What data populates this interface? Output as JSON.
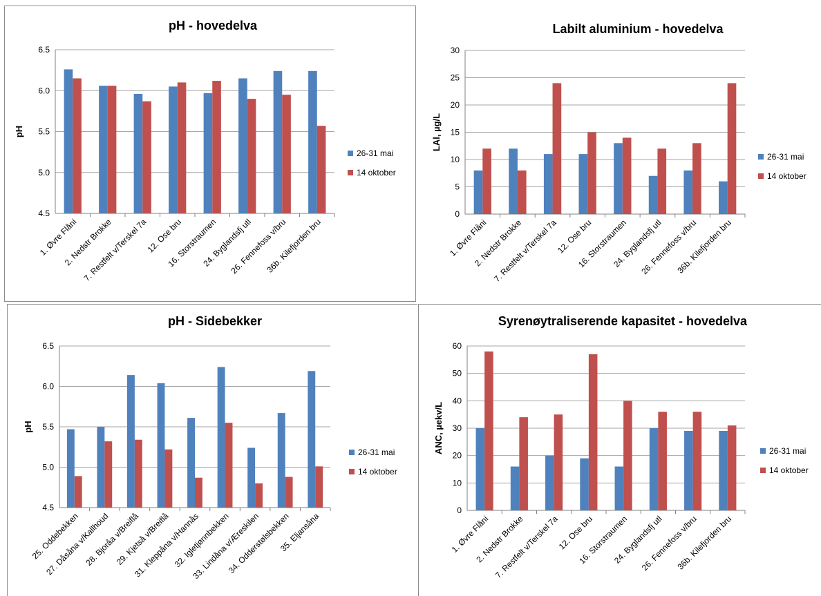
{
  "colors": {
    "series1": "#4F81BD",
    "series2": "#C0504D",
    "grid": "#A6A6A6",
    "axis": "#808080"
  },
  "chart_data": [
    {
      "type": "bar",
      "title": "pH - hovedelva",
      "ylabel": "pH",
      "ylim": [
        4.5,
        6.5
      ],
      "yticks": [
        "4.5",
        "5.0",
        "5.5",
        "6.0",
        "6.5"
      ],
      "grid": true,
      "legend": "right",
      "categories": [
        "1. Øvre Flåni",
        "2. Nedstr Brokke",
        "7. Restfelt v/Terskel 7a",
        "12. Ose bru",
        "16. Storstraumen",
        "24. Byglandsfj utl",
        "26. Fennefoss v/bru",
        "36b. Kilefjorden bru"
      ],
      "series": [
        {
          "name": "26-31 mai",
          "values": [
            6.26,
            6.06,
            5.96,
            6.05,
            5.97,
            6.15,
            6.24,
            6.24
          ]
        },
        {
          "name": "14 oktober",
          "values": [
            6.15,
            6.06,
            5.87,
            6.1,
            6.12,
            5.9,
            5.95,
            5.57
          ]
        }
      ]
    },
    {
      "type": "bar",
      "title": "Labilt aluminium - hovedelva",
      "ylabel": "LAl, µg/L",
      "ylim": [
        0,
        30
      ],
      "yticks": [
        "0",
        "5",
        "10",
        "15",
        "20",
        "25",
        "30"
      ],
      "grid": true,
      "legend": "right",
      "categories": [
        "1. Øvre Flåni",
        "2. Nedstr Brokke",
        "7. Restfelt v/Terskel 7a",
        "12. Ose bru",
        "16. Storstraumen",
        "24. Byglandsfj utl",
        "26. Fennefoss v/bru",
        "36b. Kilefjorden bru"
      ],
      "series": [
        {
          "name": "26-31 mai",
          "values": [
            8,
            12,
            11,
            11,
            13,
            7,
            8,
            6
          ]
        },
        {
          "name": "14 oktober",
          "values": [
            12,
            8,
            24,
            15,
            14,
            12,
            13,
            24
          ]
        }
      ]
    },
    {
      "type": "bar",
      "title": "pH - Sidebekker",
      "ylabel": "pH",
      "ylim": [
        4.5,
        6.5
      ],
      "yticks": [
        "4.5",
        "5.0",
        "5.5",
        "6.0",
        "6.5"
      ],
      "grid": true,
      "legend": "right",
      "categories": [
        "25. Oddebekken",
        "27. Dåsåna v/Kallhoud",
        "28. Bjoråa v/Breiflå",
        "29. Kjetså v/Breiflå",
        "31. Kleppåna v/Hannås",
        "32. Igletjønnbekken",
        "33. Lindåna v/Æreskilen",
        "34. Odderstølsbekken",
        "35. Eljansåna"
      ],
      "series": [
        {
          "name": "26-31 mai",
          "values": [
            5.47,
            5.5,
            6.14,
            6.04,
            5.61,
            6.24,
            5.24,
            5.67,
            6.19
          ]
        },
        {
          "name": "14 oktober",
          "values": [
            4.89,
            5.32,
            5.34,
            5.22,
            4.87,
            5.55,
            4.8,
            4.88,
            5.01
          ]
        }
      ]
    },
    {
      "type": "bar",
      "title": "Syrenøytraliserende kapasitet  - hovedelva",
      "ylabel": "ANC, µekv/L",
      "ylim": [
        0,
        60
      ],
      "yticks": [
        "0",
        "10",
        "20",
        "30",
        "40",
        "50",
        "60"
      ],
      "grid": true,
      "legend": "right",
      "categories": [
        "1. Øvre Flåni",
        "2. Nedstr Brokke",
        "7. Restfelt v/Terskel 7a",
        "12. Ose bru",
        "16. Storstraumen",
        "24. Byglandsfj utl",
        "26. Fennefoss v/bru",
        "36b. Kilefjorden bru"
      ],
      "series": [
        {
          "name": "26-31 mai",
          "values": [
            30,
            16,
            20,
            19,
            16,
            30,
            29,
            29
          ]
        },
        {
          "name": "14 oktober",
          "values": [
            58,
            34,
            35,
            57,
            40,
            36,
            36,
            31
          ]
        }
      ]
    }
  ]
}
